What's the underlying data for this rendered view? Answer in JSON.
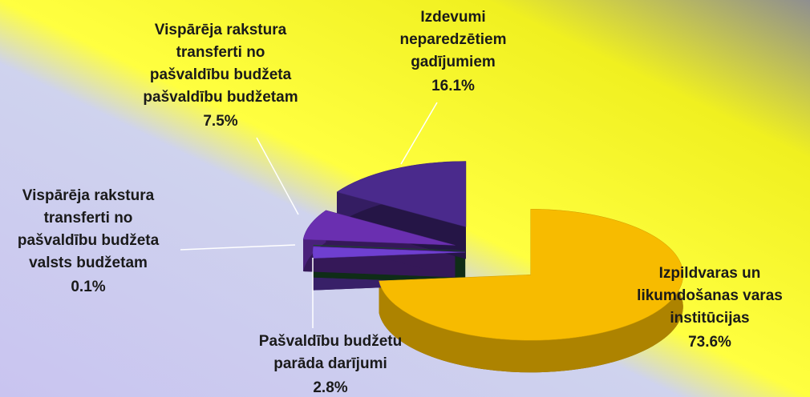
{
  "chart_data": {
    "type": "pie",
    "categories": [
      [
        "Izpildvaras un",
        "likumdošanas varas",
        "institūcijas"
      ],
      [
        "Pašvaldību budžetu",
        "parāda darījumi"
      ],
      [
        "Vispārēja rakstura",
        "transferti no",
        "pašvaldību budžeta",
        "valsts budžetam"
      ],
      [
        "Vispārēja rakstura",
        "transferti no",
        "pašvaldību budžeta",
        "pašvaldību budžetam"
      ],
      [
        "Izdevumi",
        "neparedzētiem",
        "gadījumiem"
      ]
    ],
    "values": [
      73.6,
      2.8,
      0.1,
      7.5,
      16.1
    ],
    "value_labels": [
      "73.6%",
      "2.8%",
      "0.1%",
      "7.5%",
      "16.1%"
    ],
    "colors": [
      "#f7bb00",
      "#6f3fd0",
      "#1d5a2e",
      "#6a2fb0",
      "#4a2a8c"
    ]
  }
}
